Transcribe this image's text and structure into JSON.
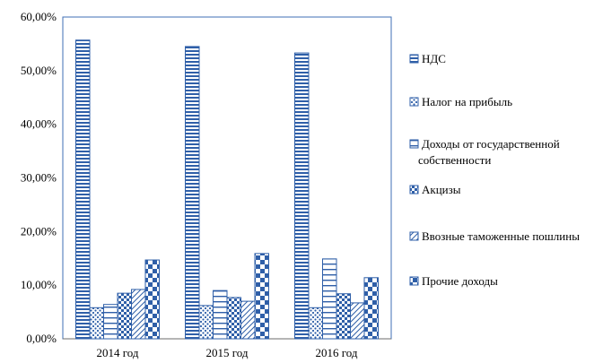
{
  "chart_data": {
    "type": "bar",
    "categories": [
      "2014  год",
      "2015  год",
      "2016  год"
    ],
    "series": [
      {
        "name": "НДС",
        "values": [
          55.7,
          54.5,
          53.3
        ],
        "color": "#2f5fa8",
        "pattern": "hstripes-dense"
      },
      {
        "name": "Налог на прибыль",
        "values": [
          5.8,
          6.2,
          5.8
        ],
        "color": "#2f5fa8",
        "pattern": "dots"
      },
      {
        "name": "Доходы от государственной собственности",
        "values": [
          6.4,
          9.0,
          14.9
        ],
        "color": "#2f5fa8",
        "pattern": "hstripes-wide"
      },
      {
        "name": "Акцизы",
        "values": [
          8.5,
          7.7,
          8.4
        ],
        "color": "#2f5fa8",
        "pattern": "checker-fine"
      },
      {
        "name": "Ввозные таможенные пошлины",
        "values": [
          9.2,
          7.0,
          6.7
        ],
        "color": "#2f5fa8",
        "pattern": "diagonal"
      },
      {
        "name": "Прочие доходы",
        "values": [
          14.7,
          15.9,
          11.4
        ],
        "color": "#2f5fa8",
        "pattern": "checker-large"
      }
    ],
    "ylim": [
      0,
      60
    ],
    "yticks": [
      "0,00%",
      "10,00%",
      "20,00%",
      "30,00%",
      "40,00%",
      "50,00%",
      "60,00%"
    ],
    "grid": false,
    "legend_position": "right"
  }
}
